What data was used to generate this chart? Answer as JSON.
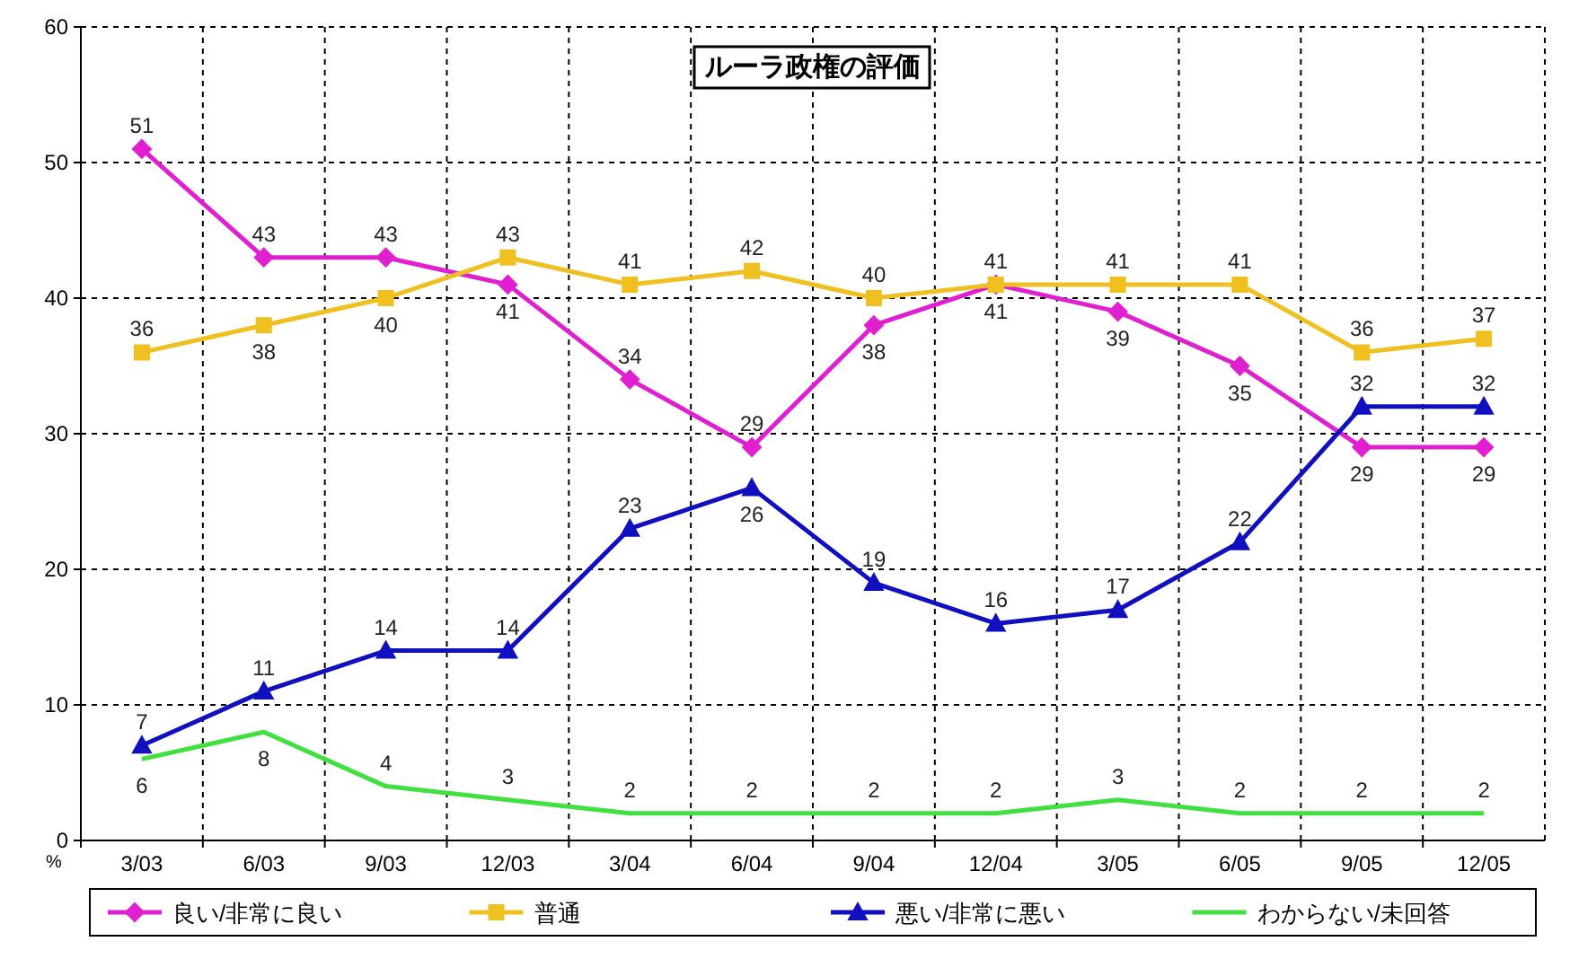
{
  "chart_data": {
    "type": "line",
    "title": "ルーラ政権の評価",
    "ylabel": "%",
    "categories": [
      "3/03",
      "6/03",
      "9/03",
      "12/03",
      "3/04",
      "6/04",
      "9/04",
      "12/04",
      "3/05",
      "6/05",
      "9/05",
      "12/05"
    ],
    "series": [
      {
        "name": "良い/非常に良い",
        "color": "#e020d0",
        "marker": "diamond",
        "values": [
          51,
          43,
          43,
          41,
          34,
          29,
          38,
          41,
          39,
          35,
          29,
          29
        ]
      },
      {
        "name": "普通",
        "color": "#f0c020",
        "marker": "square",
        "values": [
          36,
          38,
          40,
          43,
          41,
          42,
          40,
          41,
          41,
          41,
          36,
          37
        ]
      },
      {
        "name": "悪い/非常に悪い",
        "color": "#1010c0",
        "marker": "triangle",
        "values": [
          7,
          11,
          14,
          14,
          23,
          26,
          19,
          16,
          17,
          22,
          32,
          32
        ]
      },
      {
        "name": "わからない/未回答",
        "color": "#40e040",
        "marker": "none",
        "values": [
          6,
          8,
          4,
          3,
          2,
          2,
          2,
          2,
          3,
          2,
          2,
          2
        ]
      }
    ],
    "ylim": [
      0,
      60
    ],
    "yticks": [
      0,
      10,
      20,
      30,
      40,
      50,
      60
    ],
    "grid": true,
    "legend": "bottom",
    "data_labels": true
  }
}
